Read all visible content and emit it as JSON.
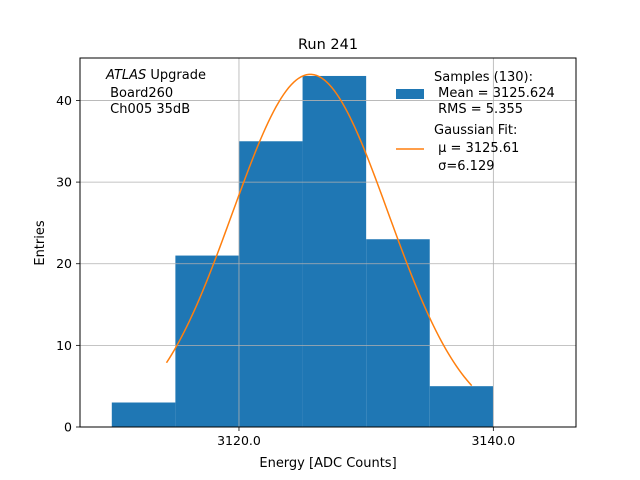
{
  "chart_data": {
    "type": "bar",
    "title": "Run 241",
    "xlabel": "Energy [ADC Counts]",
    "ylabel": "Entries",
    "xlim": [
      3107.5,
      3146.5
    ],
    "ylim": [
      0,
      45.2
    ],
    "grid": true,
    "x_ticks": [
      3120.0,
      3140.0
    ],
    "x_tick_labels": [
      "3120.0",
      "3140.0"
    ],
    "y_ticks": [
      0,
      10,
      20,
      30,
      40
    ],
    "y_tick_labels": [
      "0",
      "10",
      "20",
      "30",
      "40"
    ],
    "bins": [
      {
        "x0": 3110,
        "x1": 3115,
        "count": 3
      },
      {
        "x0": 3115,
        "x1": 3120,
        "count": 21
      },
      {
        "x0": 3120,
        "x1": 3125,
        "count": 35
      },
      {
        "x0": 3125,
        "x1": 3130,
        "count": 43
      },
      {
        "x0": 3130,
        "x1": 3135,
        "count": 23
      },
      {
        "x0": 3135,
        "x1": 3140,
        "count": 5
      }
    ],
    "histogram_color": "#1f77b4",
    "fit": {
      "mu": 3125.61,
      "sigma": 6.129,
      "amplitude": 43.2,
      "x_range": [
        3114.3,
        3138.3
      ],
      "color": "#ff7f0e"
    },
    "annotation": {
      "italic": "ATLAS",
      "line1_rest": " Upgrade",
      "line2": " Board260",
      "line3": " Ch005 35dB"
    },
    "legend": {
      "placement": "top-right",
      "hist_lines": [
        "Samples (130):",
        " Mean = 3125.624",
        " RMS = 5.355"
      ],
      "fit_lines": [
        "Gaussian Fit:",
        " μ = 3125.61",
        " σ=6.129"
      ]
    }
  }
}
